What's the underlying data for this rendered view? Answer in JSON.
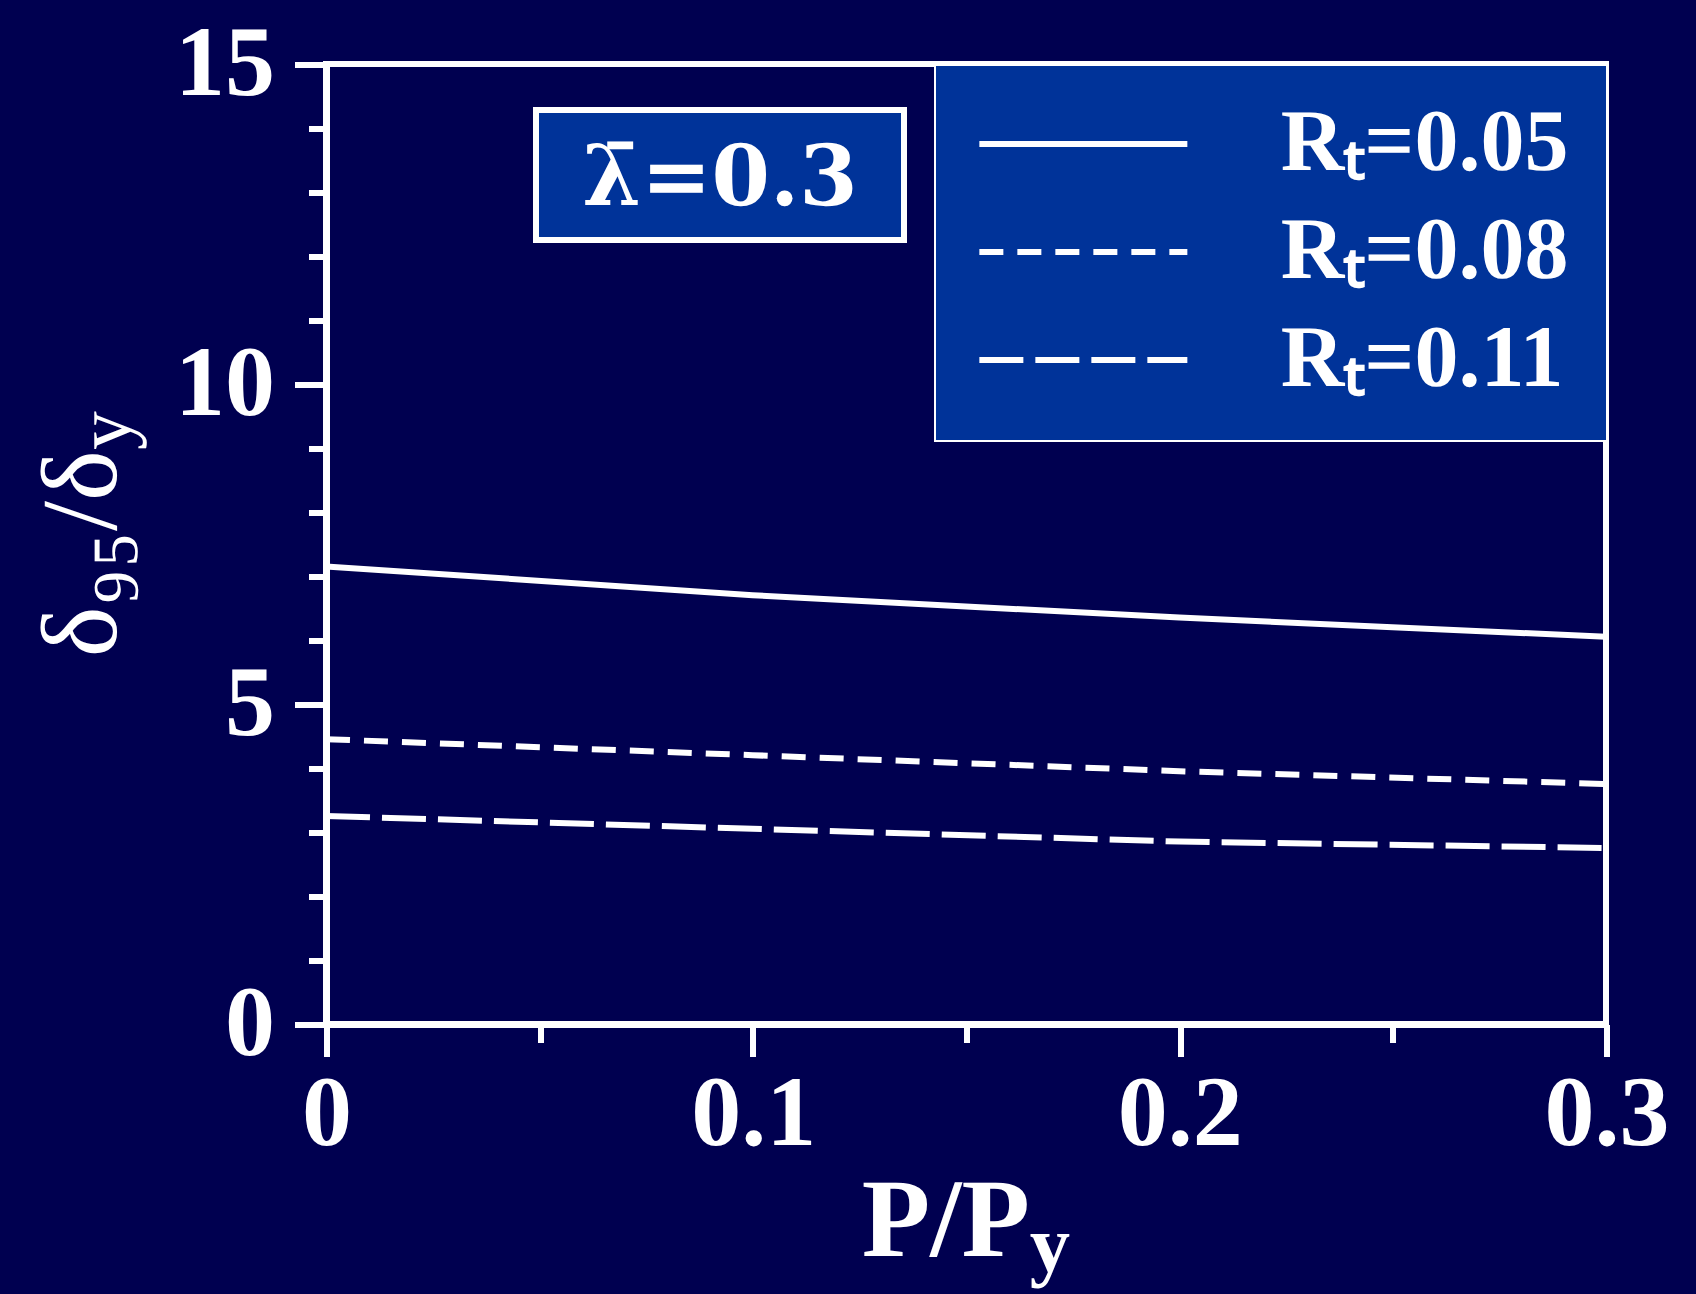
{
  "chart_data": {
    "type": "line",
    "xlabel": "P/P$_{y}$",
    "ylabel": "δ₉₅/δ$_{y}$",
    "x": [
      0,
      0.1,
      0.2,
      0.3
    ],
    "series": [
      {
        "name": "Rₜ=0.05",
        "color": "#ffffff",
        "line_style": "solid",
        "values": [
          7.15,
          6.7,
          6.35,
          6.05
        ]
      },
      {
        "name": "Rₜ=0.08",
        "color": "#ffffff",
        "line_style": "dashed",
        "values": [
          4.45,
          4.2,
          3.95,
          3.75
        ]
      },
      {
        "name": "Rₜ=0.11",
        "color": "#ffffff",
        "line_style": "dashed",
        "values": [
          3.25,
          3.05,
          2.85,
          2.75
        ]
      }
    ],
    "xlim": [
      0,
      0.3
    ],
    "ylim": [
      0,
      15
    ],
    "xticks": [
      0,
      {
        "value": 0.05,
        "label": null
      },
      0.1,
      {
        "value": 0.15,
        "label": null
      },
      0.2,
      {
        "value": 0.25,
        "label": null
      },
      0.3
    ],
    "yticks": [
      0,
      {
        "value": 1,
        "label": null
      },
      {
        "value": 2,
        "label": null
      },
      {
        "value": 3,
        "label": null
      },
      {
        "value": 4,
        "label": null
      },
      5,
      {
        "value": 6,
        "label": null
      },
      {
        "value": 7,
        "label": null
      },
      {
        "value": 8,
        "label": null
      },
      {
        "value": 9,
        "label": null
      },
      10,
      {
        "value": 11,
        "label": null
      },
      {
        "value": 12,
        "label": null
      },
      {
        "value": 13,
        "label": null
      },
      {
        "value": 14,
        "label": null
      },
      15
    ],
    "annotations": [
      "λ̄=0.3"
    ],
    "legend": "top right"
  }
}
